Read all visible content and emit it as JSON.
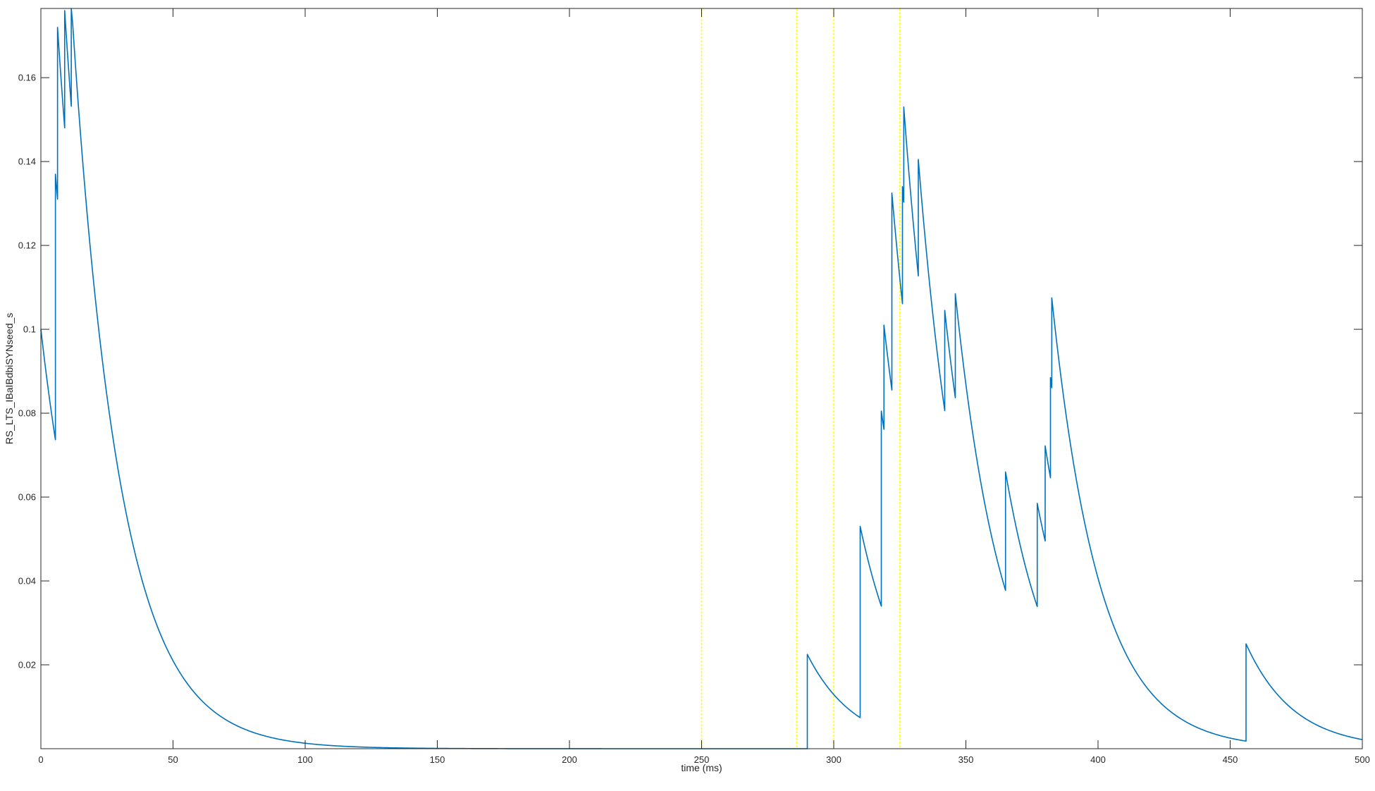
{
  "chart_data": {
    "type": "line",
    "title": "",
    "xlabel": "time (ms)",
    "ylabel": "RS_LTS_IBaIBdbiSYNseed_s",
    "xlim": [
      0,
      500
    ],
    "ylim": [
      0,
      0.1765
    ],
    "x_ticks": [
      0,
      50,
      100,
      150,
      200,
      250,
      300,
      350,
      400,
      450,
      500
    ],
    "x_tick_labels": [
      "0",
      "50",
      "100",
      "150",
      "200",
      "250",
      "300",
      "350",
      "400",
      "450",
      "500"
    ],
    "y_ticks": [
      0.02,
      0.04,
      0.06,
      0.08,
      0.1,
      0.12,
      0.14,
      0.16
    ],
    "y_tick_labels": [
      "0.02",
      "0.04",
      "0.06",
      "0.08",
      "0.1",
      "0.12",
      "0.14",
      "0.16"
    ],
    "grid": false,
    "box": true,
    "colors": {
      "series": "#0072bd",
      "markers": "#ffff00",
      "axes": "#262626"
    },
    "event_markers": {
      "color": "#ffff00",
      "x": [
        250,
        286,
        300,
        325
      ]
    },
    "series": [
      {
        "decay_tau": 18,
        "events": [
          {
            "t": 0,
            "to": 0.1
          },
          {
            "t": 5.5,
            "to": 0.137
          },
          {
            "t": 6.3,
            "to": 0.172
          },
          {
            "t": 9,
            "to": 0.176
          },
          {
            "t": 11.5,
            "to": 0.178
          },
          {
            "t": 290,
            "to": 0.0225
          },
          {
            "t": 310,
            "to": 0.053
          },
          {
            "t": 318,
            "to": 0.0805
          },
          {
            "t": 319,
            "to": 0.101
          },
          {
            "t": 322,
            "to": 0.1325
          },
          {
            "t": 326,
            "to": 0.134
          },
          {
            "t": 326.5,
            "to": 0.153
          },
          {
            "t": 332,
            "to": 0.1405
          },
          {
            "t": 342,
            "to": 0.1045
          },
          {
            "t": 346,
            "to": 0.1085
          },
          {
            "t": 365,
            "to": 0.066
          },
          {
            "t": 377,
            "to": 0.0585
          },
          {
            "t": 380,
            "to": 0.0722
          },
          {
            "t": 382,
            "to": 0.0885
          },
          {
            "t": 382.5,
            "to": 0.1075
          },
          {
            "t": 456,
            "to": 0.025
          }
        ]
      }
    ]
  }
}
